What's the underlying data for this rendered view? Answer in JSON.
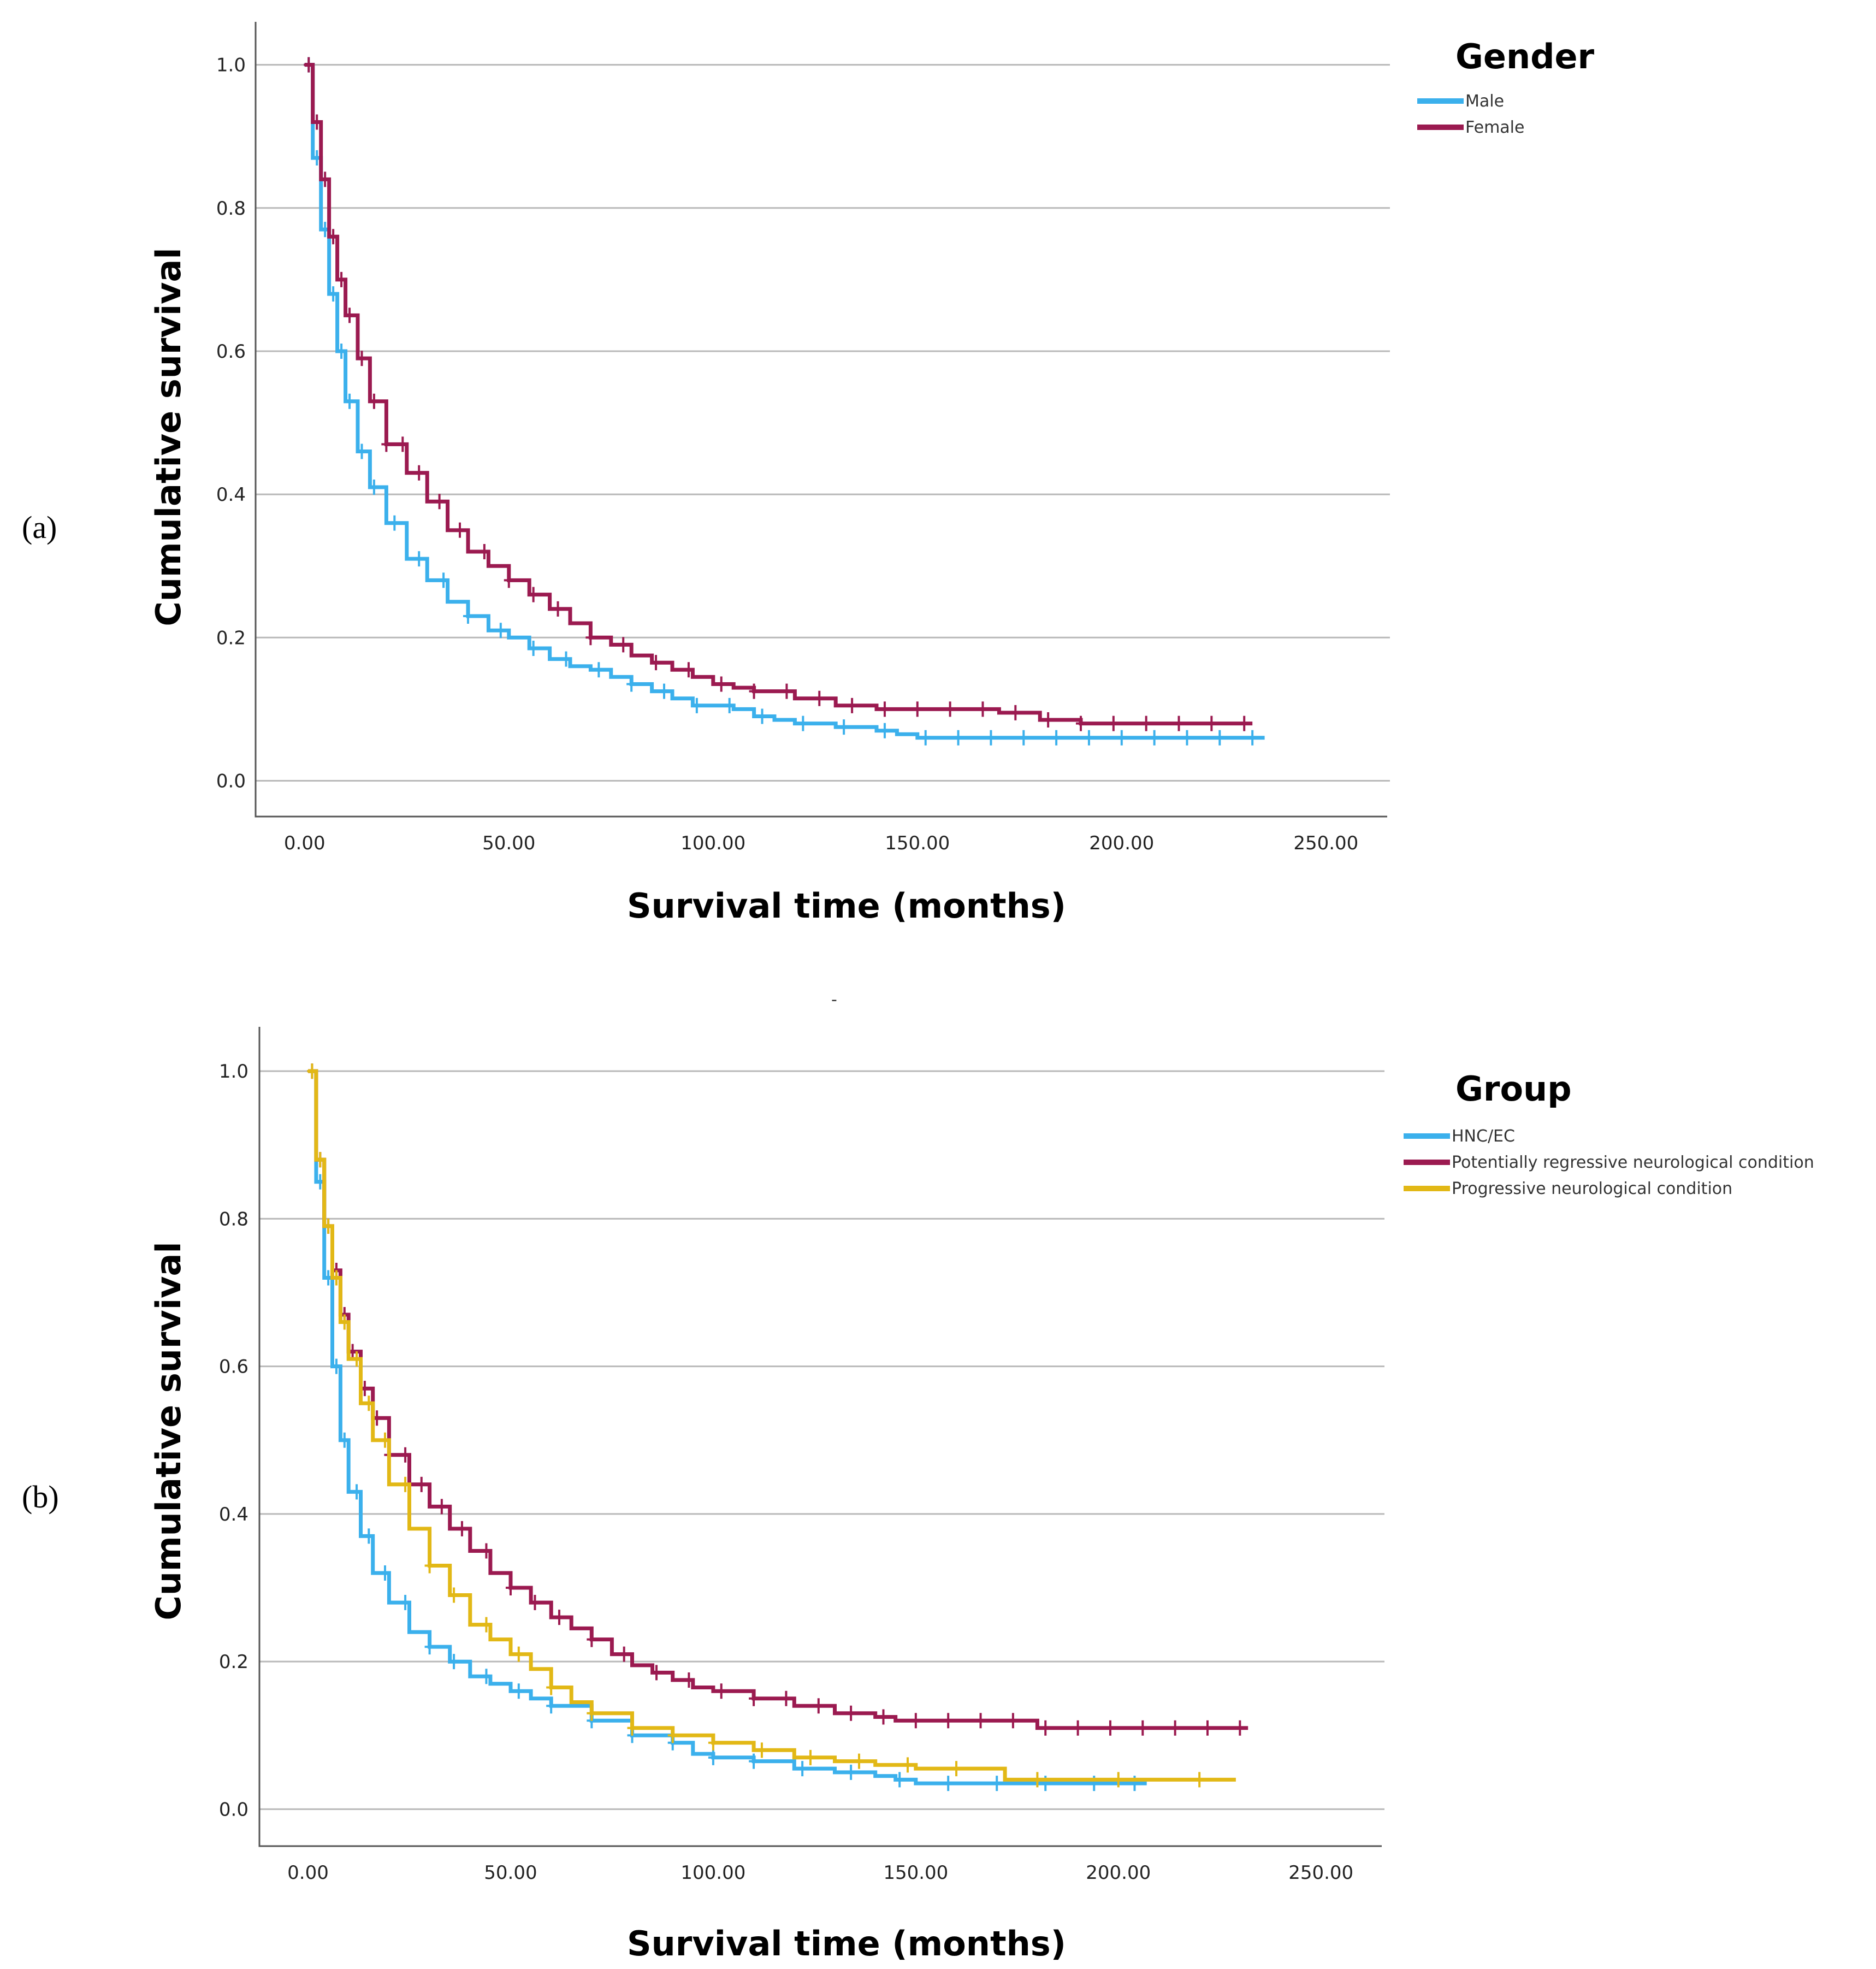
{
  "chart_data": [
    {
      "type": "line",
      "panel_label": "(a)",
      "xlabel": "Survival time (months)",
      "ylabel": "Cumulative survival",
      "xlim": [
        -12,
        265
      ],
      "ylim": [
        -0.05,
        1.06
      ],
      "x_ticks": [
        0,
        50,
        100,
        150,
        200,
        250
      ],
      "x_tick_labels": [
        "0.00",
        "50.00",
        "100.00",
        "150.00",
        "200.00",
        "250.00"
      ],
      "y_ticks": [
        0,
        0.2,
        0.4,
        0.6,
        0.8,
        1.0
      ],
      "y_tick_labels": [
        "0.0",
        "0.2",
        "0.4",
        "0.6",
        "0.8",
        "1.0"
      ],
      "grid": true,
      "legend_title": "Gender",
      "legend_position": "top-right, outside plot",
      "series": [
        {
          "name": "Male",
          "color": "#3bb0ec",
          "x": [
            0,
            2,
            4,
            6,
            8,
            10,
            13,
            16,
            20,
            25,
            30,
            35,
            40,
            45,
            50,
            55,
            60,
            65,
            70,
            75,
            80,
            85,
            90,
            95,
            100,
            105,
            110,
            115,
            120,
            130,
            140,
            145,
            150,
            160,
            180,
            200,
            220,
            235
          ],
          "y": [
            1.0,
            0.87,
            0.77,
            0.68,
            0.6,
            0.53,
            0.46,
            0.41,
            0.36,
            0.31,
            0.28,
            0.25,
            0.23,
            0.21,
            0.2,
            0.185,
            0.17,
            0.16,
            0.155,
            0.145,
            0.135,
            0.125,
            0.115,
            0.105,
            0.105,
            0.1,
            0.09,
            0.085,
            0.08,
            0.075,
            0.07,
            0.065,
            0.06,
            0.06,
            0.06,
            0.06,
            0.06,
            0.06
          ],
          "censor_x": [
            1,
            3,
            5,
            7,
            9,
            11,
            14,
            17,
            22,
            28,
            34,
            40,
            48,
            56,
            64,
            72,
            80,
            88,
            96,
            104,
            112,
            122,
            132,
            142,
            152,
            160,
            168,
            176,
            184,
            192,
            200,
            208,
            216,
            224,
            232
          ]
        },
        {
          "name": "Female",
          "color": "#9b1a50",
          "x": [
            0,
            2,
            4,
            6,
            8,
            10,
            13,
            16,
            20,
            25,
            30,
            35,
            40,
            45,
            50,
            55,
            60,
            65,
            70,
            75,
            80,
            85,
            90,
            95,
            100,
            105,
            110,
            120,
            130,
            140,
            150,
            160,
            170,
            180,
            190,
            200,
            215,
            232
          ],
          "y": [
            1.0,
            0.92,
            0.84,
            0.76,
            0.7,
            0.65,
            0.59,
            0.53,
            0.47,
            0.43,
            0.39,
            0.35,
            0.32,
            0.3,
            0.28,
            0.26,
            0.24,
            0.22,
            0.2,
            0.19,
            0.175,
            0.165,
            0.155,
            0.145,
            0.135,
            0.13,
            0.125,
            0.115,
            0.105,
            0.1,
            0.1,
            0.1,
            0.095,
            0.085,
            0.08,
            0.08,
            0.08,
            0.08
          ],
          "censor_x": [
            1,
            3,
            5,
            7,
            9,
            11,
            14,
            17,
            20,
            24,
            28,
            33,
            38,
            44,
            50,
            56,
            62,
            70,
            78,
            86,
            94,
            102,
            110,
            118,
            126,
            134,
            142,
            150,
            158,
            166,
            174,
            182,
            190,
            198,
            206,
            214,
            222,
            230
          ]
        }
      ]
    },
    {
      "type": "line",
      "panel_label": "(b)",
      "xlabel": "Survival time (months)",
      "ylabel": "Cumulative survival",
      "xlim": [
        -12,
        265
      ],
      "ylim": [
        -0.05,
        1.06
      ],
      "x_ticks": [
        0,
        50,
        100,
        150,
        200,
        250
      ],
      "x_tick_labels": [
        "0.00",
        "50.00",
        "100.00",
        "150.00",
        "200.00",
        "250.00"
      ],
      "y_ticks": [
        0,
        0.2,
        0.4,
        0.6,
        0.8,
        1.0
      ],
      "y_tick_labels": [
        "0.0",
        "0.2",
        "0.4",
        "0.6",
        "0.8",
        "1.0"
      ],
      "grid": true,
      "legend_title": "Group",
      "legend_position": "top-right, outside plot",
      "series": [
        {
          "name": "HNC/EC",
          "color": "#3bb0ec",
          "x": [
            0,
            2,
            4,
            6,
            8,
            10,
            13,
            16,
            20,
            25,
            30,
            35,
            40,
            45,
            50,
            55,
            60,
            70,
            80,
            90,
            95,
            100,
            110,
            120,
            130,
            140,
            145,
            150,
            170,
            190,
            207
          ],
          "y": [
            1.0,
            0.85,
            0.72,
            0.6,
            0.5,
            0.43,
            0.37,
            0.32,
            0.28,
            0.24,
            0.22,
            0.2,
            0.18,
            0.17,
            0.16,
            0.15,
            0.14,
            0.12,
            0.1,
            0.09,
            0.075,
            0.07,
            0.065,
            0.055,
            0.05,
            0.045,
            0.04,
            0.035,
            0.035,
            0.035,
            0.035
          ],
          "censor_x": [
            1,
            3,
            5,
            7,
            9,
            12,
            15,
            19,
            24,
            30,
            36,
            44,
            52,
            60,
            70,
            80,
            90,
            100,
            110,
            122,
            134,
            146,
            158,
            170,
            182,
            194,
            204
          ]
        },
        {
          "name": "Potentially regressive neurological condition",
          "color": "#9b1a50",
          "x": [
            0,
            2,
            4,
            6,
            8,
            10,
            13,
            16,
            20,
            25,
            30,
            35,
            40,
            45,
            50,
            55,
            60,
            65,
            70,
            75,
            80,
            85,
            90,
            95,
            100,
            110,
            120,
            130,
            140,
            145,
            150,
            160,
            180,
            200,
            220,
            232
          ],
          "y": [
            1.0,
            0.88,
            0.79,
            0.73,
            0.67,
            0.62,
            0.57,
            0.53,
            0.48,
            0.44,
            0.41,
            0.38,
            0.35,
            0.32,
            0.3,
            0.28,
            0.26,
            0.245,
            0.23,
            0.21,
            0.195,
            0.185,
            0.175,
            0.165,
            0.16,
            0.15,
            0.14,
            0.13,
            0.125,
            0.12,
            0.12,
            0.12,
            0.11,
            0.11,
            0.11,
            0.11
          ],
          "censor_x": [
            1,
            3,
            5,
            7,
            9,
            11,
            14,
            17,
            20,
            24,
            28,
            33,
            38,
            44,
            50,
            56,
            62,
            70,
            78,
            86,
            94,
            102,
            110,
            118,
            126,
            134,
            142,
            150,
            158,
            166,
            174,
            182,
            190,
            198,
            206,
            214,
            222,
            230
          ]
        },
        {
          "name": "Progressive neurological condition",
          "color": "#e2b816",
          "x": [
            0,
            2,
            4,
            6,
            8,
            10,
            13,
            16,
            20,
            25,
            30,
            35,
            40,
            45,
            50,
            55,
            60,
            65,
            70,
            80,
            90,
            100,
            110,
            120,
            130,
            140,
            150,
            160,
            170,
            172,
            190,
            210,
            229
          ],
          "y": [
            1.0,
            0.88,
            0.79,
            0.72,
            0.66,
            0.61,
            0.55,
            0.5,
            0.44,
            0.38,
            0.33,
            0.29,
            0.25,
            0.23,
            0.21,
            0.19,
            0.165,
            0.145,
            0.13,
            0.11,
            0.1,
            0.09,
            0.08,
            0.07,
            0.065,
            0.06,
            0.055,
            0.055,
            0.055,
            0.04,
            0.04,
            0.04,
            0.04
          ],
          "censor_x": [
            1,
            3,
            5,
            7,
            9,
            12,
            15,
            19,
            24,
            30,
            36,
            44,
            52,
            60,
            70,
            80,
            90,
            100,
            112,
            124,
            136,
            148,
            160,
            180,
            200,
            220
          ]
        }
      ]
    }
  ]
}
